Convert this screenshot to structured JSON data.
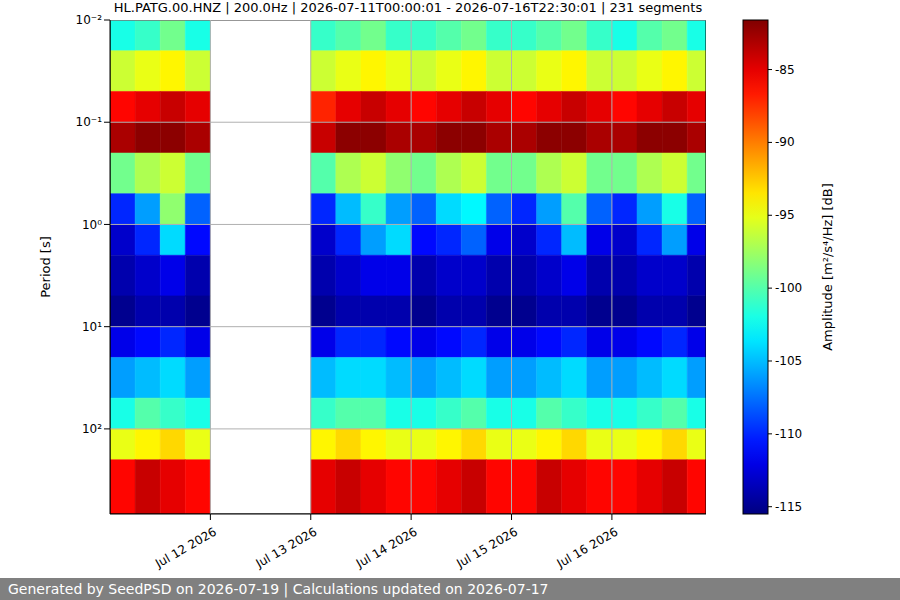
{
  "chart_data": {
    "type": "heatmap",
    "title": "HL.PATG.00.HNZ | 200.0Hz | 2026-07-11T00:00:01 - 2026-07-16T22:30:01 | 231 segments",
    "ylabel": "Period [s]",
    "colorbar_label": "Amplitude [m²/s⁴/Hz] [dB]",
    "footer": "Generated by SeedPSD on 2026-07-19 | Calculations updated on 2026-07-17",
    "log": "y",
    "grid": true,
    "xlim": [
      11,
      16.9375
    ],
    "xticks": [
      {
        "value": 12,
        "label": "Jul 12 2026"
      },
      {
        "value": 13,
        "label": "Jul 13 2026"
      },
      {
        "value": 14,
        "label": "Jul 14 2026"
      },
      {
        "value": 15,
        "label": "Jul 15 2026"
      },
      {
        "value": 16,
        "label": "Jul 16 2026"
      }
    ],
    "ylim": [
      0.01,
      680
    ],
    "yticks": [
      {
        "value": 0.01,
        "label": "10⁻²"
      },
      {
        "value": 0.1,
        "label": "10⁻¹"
      },
      {
        "value": 1,
        "label": "10⁰"
      },
      {
        "value": 10,
        "label": "10¹"
      },
      {
        "value": 100,
        "label": "10²"
      }
    ],
    "x_bins": [
      11,
      11.25,
      11.5,
      11.75,
      12,
      12.25,
      12.5,
      12.75,
      13,
      13.25,
      13.5,
      13.75,
      14,
      14.25,
      14.5,
      14.75,
      15,
      15.25,
      15.5,
      15.75,
      16,
      16.25,
      16.5,
      16.75,
      16.9375
    ],
    "y_bins": [
      0.01,
      0.02,
      0.05,
      0.1,
      0.2,
      0.5,
      1,
      2,
      5,
      10,
      20,
      50,
      100,
      200,
      680
    ],
    "cells": [
      [
        -102,
        -101,
        -99,
        -102,
        null,
        null,
        null,
        null,
        -101,
        -100,
        -99,
        -101,
        -101,
        -100,
        -99,
        -101,
        -101,
        -100,
        -99,
        -101,
        -102,
        -100,
        -99,
        -102
      ],
      [
        -96,
        -95,
        -94,
        -96,
        null,
        null,
        null,
        null,
        -96,
        -95,
        -94,
        -95,
        -96,
        -95,
        -94,
        -96,
        -96,
        -95,
        -94,
        -96,
        -96,
        -95,
        -94,
        -96
      ],
      [
        -86,
        -85,
        -84,
        -85,
        null,
        null,
        null,
        null,
        -87,
        -85,
        -84,
        -85,
        -86,
        -85,
        -84,
        -85,
        -86,
        -85,
        -84,
        -85,
        -86,
        -85,
        -84,
        -85
      ],
      [
        -83,
        -82,
        -82,
        -83,
        null,
        null,
        null,
        null,
        -84,
        -82,
        -82,
        -83,
        -83,
        -82,
        -82,
        -83,
        -83,
        -82,
        -82,
        -83,
        -83,
        -82,
        -82,
        -83
      ],
      [
        -99,
        -97,
        -96,
        -99,
        null,
        null,
        null,
        null,
        -100,
        -97,
        -96,
        -98,
        -99,
        -97,
        -96,
        -99,
        -99,
        -97,
        -96,
        -99,
        -99,
        -97,
        -96,
        -99
      ],
      [
        -110,
        -106,
        -98,
        -108,
        null,
        null,
        null,
        null,
        -110,
        -105,
        -101,
        -106,
        -108,
        -104,
        -103,
        -108,
        -110,
        -106,
        -100,
        -108,
        -110,
        -106,
        -102,
        -108
      ],
      [
        -113,
        -110,
        -104,
        -111,
        null,
        null,
        null,
        null,
        -113,
        -110,
        -106,
        -104,
        -111,
        -110,
        -108,
        -112,
        -113,
        -110,
        -105,
        -112,
        -113,
        -110,
        -106,
        -112
      ],
      [
        -114,
        -113,
        -112,
        -114,
        null,
        null,
        null,
        null,
        -114,
        -113,
        -112,
        -112,
        -114,
        -113,
        -113,
        -114,
        -114,
        -113,
        -112,
        -114,
        -114,
        -113,
        -113,
        -114
      ],
      [
        -115,
        -114,
        -114,
        -115,
        null,
        null,
        null,
        null,
        -115,
        -114,
        -114,
        -114,
        -115,
        -114,
        -114,
        -115,
        -115,
        -114,
        -114,
        -115,
        -115,
        -114,
        -114,
        -115
      ],
      [
        -112,
        -111,
        -110,
        -112,
        null,
        null,
        null,
        null,
        -112,
        -110,
        -110,
        -111,
        -112,
        -111,
        -110,
        -112,
        -112,
        -111,
        -110,
        -112,
        -112,
        -111,
        -110,
        -112
      ],
      [
        -106,
        -105,
        -104,
        -106,
        null,
        null,
        null,
        null,
        -105,
        -104,
        -104,
        -105,
        -106,
        -105,
        -104,
        -106,
        -106,
        -105,
        -104,
        -106,
        -106,
        -105,
        -104,
        -106
      ],
      [
        -102,
        -100,
        -101,
        -102,
        null,
        null,
        null,
        null,
        -101,
        -100,
        -100,
        -102,
        -102,
        -101,
        -100,
        -102,
        -102,
        -100,
        -101,
        -102,
        -102,
        -101,
        -100,
        -102
      ],
      [
        -95,
        -94,
        -93,
        -95,
        null,
        null,
        null,
        null,
        -94,
        -93,
        -94,
        -95,
        -95,
        -94,
        -93,
        -95,
        -95,
        -94,
        -93,
        -95,
        -95,
        -94,
        -93,
        -95
      ],
      [
        -86,
        -84,
        -85,
        -86,
        null,
        null,
        null,
        null,
        -85,
        -84,
        -85,
        -86,
        -86,
        -85,
        -84,
        -86,
        -86,
        -84,
        -85,
        -86,
        -86,
        -85,
        -84,
        -86
      ]
    ],
    "colorbar": {
      "range": [
        -115.5,
        -81.6
      ],
      "ticks": [
        -85,
        -90,
        -95,
        -100,
        -105,
        -110,
        -115
      ]
    }
  }
}
